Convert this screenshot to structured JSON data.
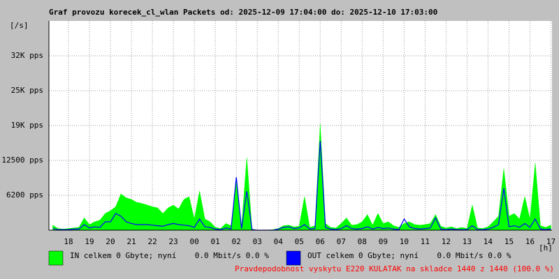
{
  "chart_data": {
    "type": "area-line",
    "title": "Graf provozu korecek_cl_wlan Packets od: 2025-12-09 17:04:00 do: 2025-12-10 17:03:00",
    "y_label": "[/s]",
    "x_label": "[h]",
    "note": "Pravdepodobnost vyskytu E220 KULATAK na skladce 1440 z 1440 (100.0 %)",
    "xlim": [
      17.0667,
      41.05
    ],
    "xticks": [
      18,
      19,
      20,
      21,
      22,
      23,
      {
        "value": 24,
        "label": "00"
      },
      {
        "value": 25,
        "label": "01"
      },
      {
        "value": 26,
        "label": "02"
      },
      {
        "value": 27,
        "label": "03"
      },
      {
        "value": 28,
        "label": "04"
      },
      {
        "value": 29,
        "label": "05"
      },
      {
        "value": 30,
        "label": "06"
      },
      {
        "value": 31,
        "label": "07"
      },
      {
        "value": 32,
        "label": "08"
      },
      {
        "value": 33,
        "label": "09"
      },
      {
        "value": 34,
        "label": "10"
      },
      {
        "value": 35,
        "label": "11"
      },
      {
        "value": 36,
        "label": "12"
      },
      {
        "value": 37,
        "label": "13"
      },
      {
        "value": 38,
        "label": "14"
      },
      {
        "value": 39,
        "label": "15"
      },
      {
        "value": 40,
        "label": "16"
      },
      {
        "value": 41,
        "label": "17"
      }
    ],
    "ylim": [
      0,
      37500
    ],
    "yticks": [
      {
        "value": 6250,
        "label": "6200 pps"
      },
      {
        "value": 12500,
        "label": "12500 pps"
      },
      {
        "value": 18750,
        "label": "19K pps"
      },
      {
        "value": 25000,
        "label": "25K pps"
      },
      {
        "value": 31250,
        "label": "32K pps"
      }
    ],
    "grid": true,
    "x": [
      17.25,
      17.5,
      17.75,
      18,
      18.25,
      18.5,
      18.75,
      19,
      19.25,
      19.5,
      19.75,
      20,
      20.25,
      20.5,
      20.75,
      21,
      21.25,
      21.5,
      21.75,
      22,
      22.25,
      22.5,
      22.75,
      23,
      23.25,
      23.5,
      23.75,
      24,
      24.25,
      24.5,
      24.75,
      25,
      25.25,
      25.5,
      25.75,
      26,
      26.25,
      26.5,
      26.75,
      27,
      27.25,
      27.5,
      27.75,
      28,
      28.25,
      28.5,
      28.75,
      29,
      29.25,
      29.5,
      29.75,
      30,
      30.25,
      30.5,
      30.75,
      31,
      31.25,
      31.5,
      31.75,
      32,
      32.25,
      32.5,
      32.75,
      33,
      33.25,
      33.5,
      33.75,
      34,
      34.25,
      34.5,
      34.75,
      35,
      35.25,
      35.5,
      35.75,
      36,
      36.25,
      36.5,
      36.75,
      37,
      37.25,
      37.5,
      37.75,
      38,
      38.25,
      38.5,
      38.75,
      39,
      39.25,
      39.5,
      39.75,
      40,
      40.25,
      40.5,
      40.75,
      41
    ],
    "series": [
      {
        "name": "IN celkem 0 Gbyte; nyní    0.0 Mbit/s 0.0 %",
        "color": "#00ff00",
        "values": [
          900,
          300,
          200,
          300,
          400,
          500,
          2200,
          1000,
          1500,
          1800,
          3000,
          3500,
          4200,
          6500,
          5800,
          5500,
          5000,
          4800,
          4500,
          4200,
          4000,
          3000,
          4000,
          4500,
          3800,
          5500,
          6000,
          2000,
          7000,
          2000,
          1500,
          500,
          300,
          1200,
          800,
          9000,
          600,
          13000,
          200,
          0,
          0,
          0,
          100,
          300,
          800,
          900,
          600,
          700,
          6000,
          500,
          800,
          19000,
          1200,
          500,
          400,
          1200,
          2200,
          900,
          1000,
          1500,
          2800,
          900,
          3000,
          1200,
          1500,
          800,
          500,
          1200,
          1500,
          1000,
          900,
          1000,
          1200,
          2800,
          700,
          400,
          600,
          300,
          500,
          300,
          4500,
          400,
          300,
          600,
          1500,
          2500,
          11000,
          2500,
          3000,
          2000,
          6000,
          2000,
          12000,
          800,
          500,
          900
        ]
      },
      {
        "name": "OUT celkem 0 Gbyte; nyní    0.0 Mbit/s 0.0 %",
        "color": "#0000ff",
        "values": [
          300,
          100,
          100,
          100,
          200,
          200,
          1000,
          400,
          600,
          500,
          1500,
          1500,
          3000,
          2500,
          1500,
          1200,
          1000,
          1000,
          1000,
          900,
          800,
          700,
          1000,
          1200,
          1000,
          900,
          800,
          500,
          2000,
          600,
          500,
          200,
          100,
          400,
          200,
          9500,
          300,
          7000,
          100,
          0,
          0,
          0,
          0,
          200,
          500,
          600,
          300,
          400,
          1000,
          200,
          300,
          16000,
          500,
          200,
          100,
          300,
          800,
          300,
          200,
          300,
          600,
          200,
          500,
          300,
          400,
          200,
          100,
          2000,
          600,
          300,
          200,
          300,
          400,
          2200,
          200,
          100,
          200,
          100,
          100,
          100,
          800,
          100,
          100,
          200,
          500,
          1000,
          7500,
          600,
          800,
          500,
          1200,
          500,
          2000,
          200,
          100,
          200
        ]
      }
    ]
  }
}
